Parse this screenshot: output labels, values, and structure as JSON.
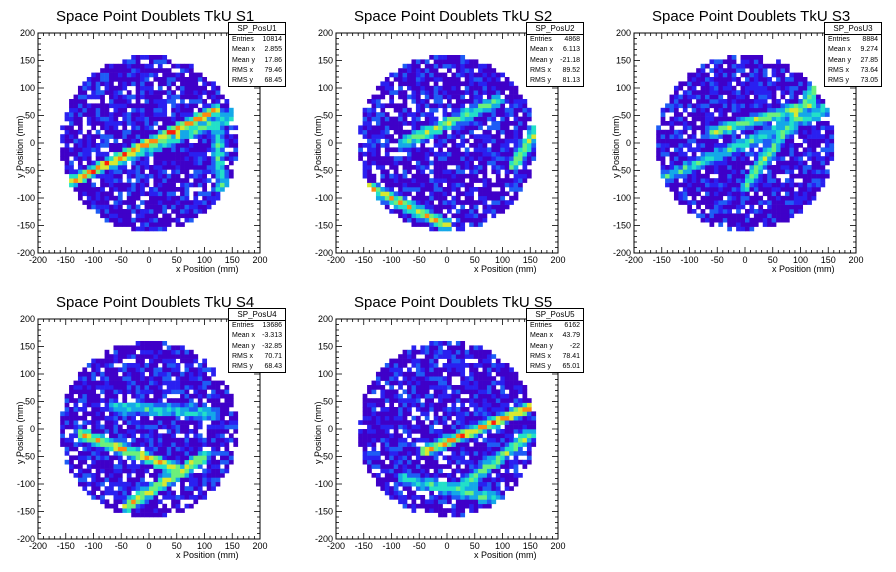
{
  "chart_data": [
    {
      "type": "heatmap",
      "title": "Space Point Doublets TkU S1",
      "xlabel": "x Position (mm)",
      "ylabel": "y Position (mm)",
      "xlim": [
        -200,
        200
      ],
      "ylim": [
        -200,
        200
      ],
      "xticks": [
        "-200",
        "-150",
        "-100",
        "-50",
        "0",
        "50",
        "100",
        "150",
        "200"
      ],
      "yticks": [
        "-200",
        "-150",
        "-100",
        "-50",
        "0",
        "50",
        "100",
        "150",
        "200"
      ],
      "stats": {
        "name": "SP_PosU1",
        "rows": [
          {
            "label": "Entries",
            "value": "10814"
          },
          {
            "label": "Mean x",
            "value": "2.855"
          },
          {
            "label": "Mean y",
            "value": "17.86"
          },
          {
            "label": "RMS x",
            "value": "79.46"
          },
          {
            "label": "RMS y",
            "value": "68.45"
          }
        ]
      },
      "bands": [
        {
          "x1": -150,
          "y1": -75,
          "x2": 120,
          "y2": 60,
          "intensity": 0.95
        },
        {
          "x1": -80,
          "y1": -40,
          "x2": 150,
          "y2": 50,
          "intensity": 0.45
        },
        {
          "x1": 130,
          "y1": -80,
          "x2": 120,
          "y2": 60,
          "intensity": 0.4
        }
      ],
      "seed": 11
    },
    {
      "type": "heatmap",
      "title": "Space Point Doublets TkU S2",
      "xlabel": "x Position (mm)",
      "ylabel": "y Position (mm)",
      "xlim": [
        -200,
        200
      ],
      "ylim": [
        -200,
        200
      ],
      "xticks": [
        "-200",
        "-150",
        "-100",
        "-50",
        "0",
        "50",
        "100",
        "150",
        "200"
      ],
      "yticks": [
        "-200",
        "-150",
        "-100",
        "-50",
        "0",
        "50",
        "100",
        "150",
        "200"
      ],
      "stats": {
        "name": "SP_PosU2",
        "rows": [
          {
            "label": "Entries",
            "value": "4868"
          },
          {
            "label": "Mean x",
            "value": "6.113"
          },
          {
            "label": "Mean y",
            "value": "-21.18"
          },
          {
            "label": "RMS x",
            "value": "89.52"
          },
          {
            "label": "RMS y",
            "value": "81.13"
          }
        ]
      },
      "bands": [
        {
          "x1": -140,
          "y1": -80,
          "x2": 0,
          "y2": -150,
          "intensity": 0.7
        },
        {
          "x1": -80,
          "y1": 0,
          "x2": 90,
          "y2": 75,
          "intensity": 0.55
        },
        {
          "x1": 120,
          "y1": -40,
          "x2": 160,
          "y2": 20,
          "intensity": 0.6
        }
      ],
      "seed": 22
    },
    {
      "type": "heatmap",
      "title": "Space Point Doublets TkU S3",
      "xlabel": "x Position (mm)",
      "ylabel": "y Position (mm)",
      "xlim": [
        -200,
        200
      ],
      "ylim": [
        -200,
        200
      ],
      "xticks": [
        "-200",
        "-150",
        "-100",
        "-50",
        "0",
        "50",
        "100",
        "150",
        "200"
      ],
      "yticks": [
        "-200",
        "-150",
        "-100",
        "-50",
        "0",
        "50",
        "100",
        "150",
        "200"
      ],
      "stats": {
        "name": "SP_PosU3",
        "rows": [
          {
            "label": "Entries",
            "value": "8884"
          },
          {
            "label": "Mean x",
            "value": "9.274"
          },
          {
            "label": "Mean y",
            "value": "27.85"
          },
          {
            "label": "RMS x",
            "value": "73.64"
          },
          {
            "label": "RMS y",
            "value": "73.05"
          }
        ]
      },
      "bands": [
        {
          "x1": -60,
          "y1": 20,
          "x2": 120,
          "y2": 70,
          "intensity": 0.6
        },
        {
          "x1": 0,
          "y1": -80,
          "x2": 140,
          "y2": 120,
          "intensity": 0.5
        },
        {
          "x1": -140,
          "y1": -60,
          "x2": 140,
          "y2": 60,
          "intensity": 0.35
        }
      ],
      "seed": 33
    },
    {
      "type": "heatmap",
      "title": "Space Point Doublets TkU S4",
      "xlabel": "x Position (mm)",
      "ylabel": "y Position (mm)",
      "xlim": [
        -200,
        200
      ],
      "ylim": [
        -200,
        200
      ],
      "xticks": [
        "-200",
        "-150",
        "-100",
        "-50",
        "0",
        "50",
        "100",
        "150",
        "200"
      ],
      "yticks": [
        "-200",
        "-150",
        "-100",
        "-50",
        "0",
        "50",
        "100",
        "150",
        "200"
      ],
      "stats": {
        "name": "SP_PosU4",
        "rows": [
          {
            "label": "Entries",
            "value": "13686"
          },
          {
            "label": "Mean x",
            "value": "-3.313"
          },
          {
            "label": "Mean y",
            "value": "-32.85"
          },
          {
            "label": "RMS x",
            "value": "70.71"
          },
          {
            "label": "RMS y",
            "value": "68.43"
          }
        ]
      },
      "bands": [
        {
          "x1": -120,
          "y1": -10,
          "x2": 60,
          "y2": -75,
          "intensity": 0.75
        },
        {
          "x1": -40,
          "y1": -140,
          "x2": 100,
          "y2": -50,
          "intensity": 0.7
        },
        {
          "x1": -60,
          "y1": 40,
          "x2": 120,
          "y2": 30,
          "intensity": 0.3
        }
      ],
      "seed": 44
    },
    {
      "type": "heatmap",
      "title": "Space Point Doublets TkU S5",
      "xlabel": "x Position (mm)",
      "ylabel": "y Position (mm)",
      "xlim": [
        -200,
        200
      ],
      "ylim": [
        -200,
        200
      ],
      "xticks": [
        "-200",
        "-150",
        "-100",
        "-50",
        "0",
        "50",
        "100",
        "150",
        "200"
      ],
      "yticks": [
        "-200",
        "-150",
        "-100",
        "-50",
        "0",
        "50",
        "100",
        "150",
        "200"
      ],
      "stats": {
        "name": "SP_PosU5",
        "rows": [
          {
            "label": "Entries",
            "value": "6162"
          },
          {
            "label": "Mean x",
            "value": "43.79"
          },
          {
            "label": "Mean y",
            "value": "-22"
          },
          {
            "label": "RMS x",
            "value": "78.41"
          },
          {
            "label": "RMS y",
            "value": "65.01"
          }
        ]
      },
      "bands": [
        {
          "x1": -40,
          "y1": -40,
          "x2": 150,
          "y2": 40,
          "intensity": 0.9
        },
        {
          "x1": 20,
          "y1": -110,
          "x2": 150,
          "y2": -10,
          "intensity": 0.55
        },
        {
          "x1": -80,
          "y1": -90,
          "x2": 100,
          "y2": -130,
          "intensity": 0.4
        }
      ],
      "seed": 55
    }
  ],
  "colors": {
    "palette": [
      "#3f00c8",
      "#2a20f0",
      "#1e5cf5",
      "#14a8e8",
      "#22e0c8",
      "#6cf07a",
      "#d8e830",
      "#ff8a10",
      "#ff1d0a"
    ],
    "axis": "#000000",
    "background": "#ffffff"
  }
}
